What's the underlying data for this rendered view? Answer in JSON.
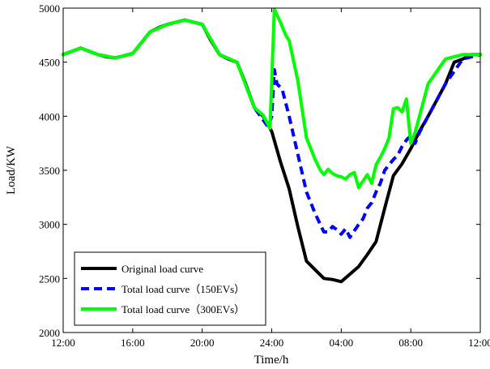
{
  "chart_data": {
    "type": "line",
    "xlabel": "Time/h",
    "ylabel": "Load/KW",
    "xlim": [
      0,
      24
    ],
    "ylim": [
      2000,
      5000
    ],
    "x_ticks": [
      {
        "v": 0,
        "label": "12:00"
      },
      {
        "v": 4,
        "label": "16:00"
      },
      {
        "v": 8,
        "label": "20:00"
      },
      {
        "v": 12,
        "label": "24:00"
      },
      {
        "v": 16,
        "label": "04:00"
      },
      {
        "v": 20,
        "label": "08:00"
      },
      {
        "v": 24,
        "label": "12:00"
      }
    ],
    "y_ticks": [
      2000,
      2500,
      3000,
      3500,
      4000,
      4500,
      5000
    ],
    "grid": false,
    "legend_position": "bottom-left",
    "series": [
      {
        "name": "Original load curve",
        "color": "#000000",
        "style": "solid",
        "x": [
          0,
          0.5,
          1,
          1.5,
          2,
          2.5,
          3,
          3.5,
          4,
          4.5,
          5,
          5.5,
          6,
          6.5,
          7,
          7.5,
          8,
          8.5,
          9,
          9.5,
          10,
          10.5,
          11,
          11.5,
          12,
          12.5,
          13,
          13.5,
          14,
          14.5,
          15,
          15.5,
          16,
          16.5,
          17,
          17.5,
          18,
          18.5,
          19,
          19.5,
          20,
          20.5,
          21,
          21.5,
          22,
          22.5,
          23,
          23.5,
          24
        ],
        "y": [
          4570,
          4600,
          4630,
          4600,
          4570,
          4550,
          4540,
          4560,
          4580,
          4680,
          4780,
          4820,
          4850,
          4870,
          4890,
          4870,
          4850,
          4700,
          4570,
          4530,
          4500,
          4300,
          4080,
          4000,
          3860,
          3580,
          3330,
          2980,
          2660,
          2580,
          2500,
          2490,
          2470,
          2540,
          2610,
          2720,
          2840,
          3150,
          3450,
          3560,
          3700,
          3860,
          4000,
          4150,
          4300,
          4500,
          4530,
          4570,
          4570
        ]
      },
      {
        "name": "Total load curve（150EVs）",
        "color": "#0000ff",
        "style": "dashed",
        "x": [
          0,
          1,
          2,
          3,
          4,
          5,
          6,
          7,
          8,
          9,
          10,
          11,
          11.8,
          12.0,
          12.15,
          12.3,
          12.6,
          13.0,
          13.5,
          14.0,
          14.5,
          15.0,
          15.25,
          15.5,
          15.75,
          16.0,
          16.25,
          16.5,
          16.75,
          17.0,
          17.25,
          17.5,
          17.75,
          18.0,
          18.25,
          18.5,
          18.75,
          19.0,
          19.25,
          19.5,
          19.75,
          20.0,
          20.25,
          20.5,
          21,
          22,
          23,
          24
        ],
        "y": [
          4570,
          4630,
          4570,
          4540,
          4580,
          4780,
          4850,
          4890,
          4850,
          4570,
          4500,
          4080,
          3900,
          4000,
          4430,
          4300,
          4250,
          4000,
          3650,
          3300,
          3100,
          2930,
          2930,
          2980,
          2950,
          2910,
          2960,
          2880,
          2940,
          3000,
          3050,
          3150,
          3200,
          3300,
          3380,
          3500,
          3550,
          3600,
          3640,
          3720,
          3780,
          3820,
          3750,
          3850,
          4000,
          4300,
          4530,
          4570
        ]
      },
      {
        "name": "Total load curve（300EVs）",
        "color": "#00ff00",
        "style": "solid",
        "x": [
          0,
          1,
          2,
          3,
          4,
          5,
          6,
          7,
          8,
          9,
          10,
          11,
          11.5,
          11.9,
          12.15,
          12.5,
          12.8,
          13.0,
          13.5,
          14.0,
          14.5,
          14.8,
          15.0,
          15.25,
          15.5,
          15.75,
          16.0,
          16.25,
          16.5,
          16.75,
          17.0,
          17.25,
          17.5,
          17.75,
          18.0,
          18.25,
          18.5,
          18.75,
          19.0,
          19.25,
          19.5,
          19.75,
          20.0,
          20.25,
          20.5,
          21,
          22,
          23,
          24
        ],
        "y": [
          4570,
          4630,
          4570,
          4540,
          4580,
          4780,
          4850,
          4890,
          4850,
          4570,
          4500,
          4080,
          4010,
          3890,
          4990,
          4870,
          4750,
          4700,
          4330,
          3800,
          3600,
          3500,
          3460,
          3510,
          3470,
          3450,
          3440,
          3420,
          3460,
          3480,
          3340,
          3400,
          3460,
          3380,
          3550,
          3620,
          3700,
          3800,
          4070,
          4080,
          4040,
          4160,
          3750,
          3850,
          4000,
          4300,
          4530,
          4570,
          4570
        ]
      }
    ]
  }
}
